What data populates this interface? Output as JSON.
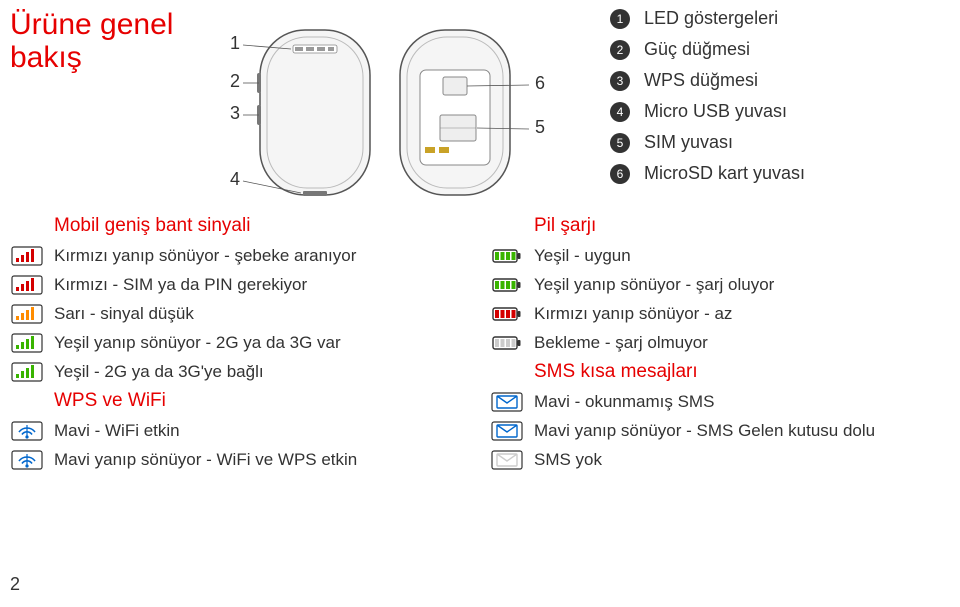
{
  "title_line1": "Ürüne genel",
  "title_line2": "bakış",
  "page_number": "2",
  "diagram": {
    "numbers_left": [
      "1",
      "2",
      "3",
      "4"
    ],
    "numbers_right": [
      "6",
      "5"
    ]
  },
  "components": [
    {
      "n": "1",
      "label": "LED göstergeleri"
    },
    {
      "n": "2",
      "label": "Güç düğmesi"
    },
    {
      "n": "3",
      "label": "WPS düğmesi"
    },
    {
      "n": "4",
      "label": "Micro USB yuvası"
    },
    {
      "n": "5",
      "label": "SIM yuvası"
    },
    {
      "n": "6",
      "label": "MicroSD kart yuvası"
    }
  ],
  "left_col": {
    "section1_title": "Mobil geniş bant sinyali",
    "section1_rows": [
      {
        "icon": "signal",
        "color": "#d40000",
        "label": "Kırmızı yanıp sönüyor - şebeke aranıyor"
      },
      {
        "icon": "signal",
        "color": "#d40000",
        "label": "Kırmızı - SIM ya da PIN gerekiyor"
      },
      {
        "icon": "signal",
        "color": "#ff8c00",
        "label": "Sarı - sinyal düşük"
      },
      {
        "icon": "signal",
        "color": "#39b400",
        "label": "Yeşil yanıp sönüyor - 2G ya da 3G var"
      },
      {
        "icon": "signal",
        "color": "#39b400",
        "label": "Yeşil - 2G ya da 3G'ye bağlı"
      }
    ],
    "section2_title": "WPS ve WiFi",
    "section2_rows": [
      {
        "icon": "wifi",
        "color": "#0066cc",
        "label": "Mavi - WiFi etkin"
      },
      {
        "icon": "wifi",
        "color": "#0066cc",
        "label": "Mavi yanıp sönüyor - WiFi ve WPS etkin"
      }
    ]
  },
  "right_col": {
    "section1_title": "Pil şarjı",
    "section1_rows": [
      {
        "icon": "battery",
        "color": "#39b400",
        "label": "Yeşil - uygun"
      },
      {
        "icon": "battery",
        "color": "#39b400",
        "label": "Yeşil yanıp sönüyor - şarj oluyor"
      },
      {
        "icon": "battery",
        "color": "#d40000",
        "label": "Kırmızı yanıp sönüyor - az"
      },
      {
        "icon": "battery",
        "color": "#cccccc",
        "label": "Bekleme - şarj olmuyor"
      }
    ],
    "section2_title": "SMS kısa mesajları",
    "section2_rows": [
      {
        "icon": "sms",
        "color": "#0066cc",
        "label": "Mavi - okunmamış SMS"
      },
      {
        "icon": "sms",
        "color": "#0066cc",
        "label": "Mavi yanıp sönüyor - SMS Gelen kutusu dolu"
      },
      {
        "icon": "sms",
        "color": "#cccccc",
        "label": "SMS yok"
      }
    ]
  },
  "colors": {
    "accent": "#e60000",
    "text": "#333333",
    "badge_bg": "#333333",
    "device_stroke": "#555555",
    "device_fill": "#f5f5f5"
  }
}
